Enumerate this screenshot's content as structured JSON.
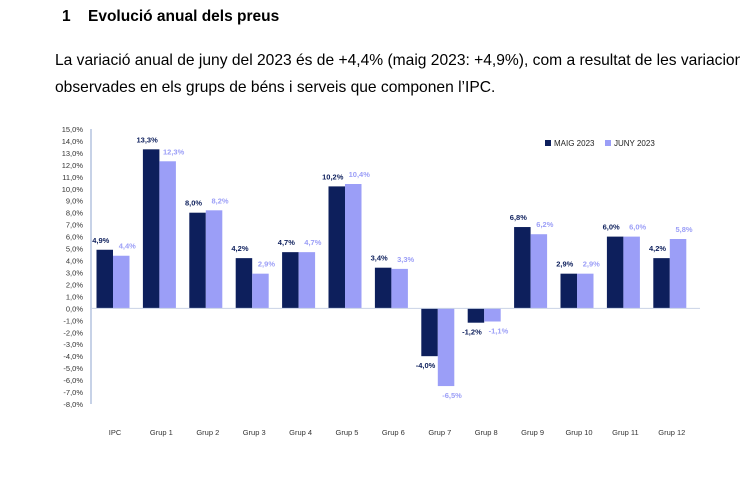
{
  "heading": {
    "number": "1",
    "title": "Evolució anual dels preus"
  },
  "paragraph": {
    "line1": "La variació anual de juny del 2023 és de +4,4% (maig 2023: +4,9%), com a resultat de les variacions",
    "line2": "observades en els grups de béns i serveis que componen l’IPC."
  },
  "chart_data": {
    "type": "bar",
    "categories": [
      "IPC",
      "Grup 1",
      "Grup 2",
      "Grup 3",
      "Grup 4",
      "Grup 5",
      "Grup 6",
      "Grup 7",
      "Grup 8",
      "Grup 9",
      "Grup 10",
      "Grup 11",
      "Grup 12"
    ],
    "series": [
      {
        "name": "MAIG 2023",
        "color": "#0d1f5c",
        "values": [
          4.9,
          13.3,
          8.0,
          4.2,
          4.7,
          10.2,
          3.4,
          -4.0,
          -1.2,
          6.8,
          2.9,
          6.0,
          4.2
        ]
      },
      {
        "name": "JUNY 2023",
        "color": "#9b9ef7",
        "values": [
          4.4,
          12.3,
          8.2,
          2.9,
          4.7,
          10.4,
          3.3,
          -6.5,
          -1.1,
          6.2,
          2.9,
          6.0,
          5.8
        ]
      }
    ],
    "ylim": [
      -8,
      15
    ],
    "ytick_step": 1,
    "ytick_format": "0,0%",
    "data_labels": true,
    "legend": "top-right",
    "grid": false
  }
}
